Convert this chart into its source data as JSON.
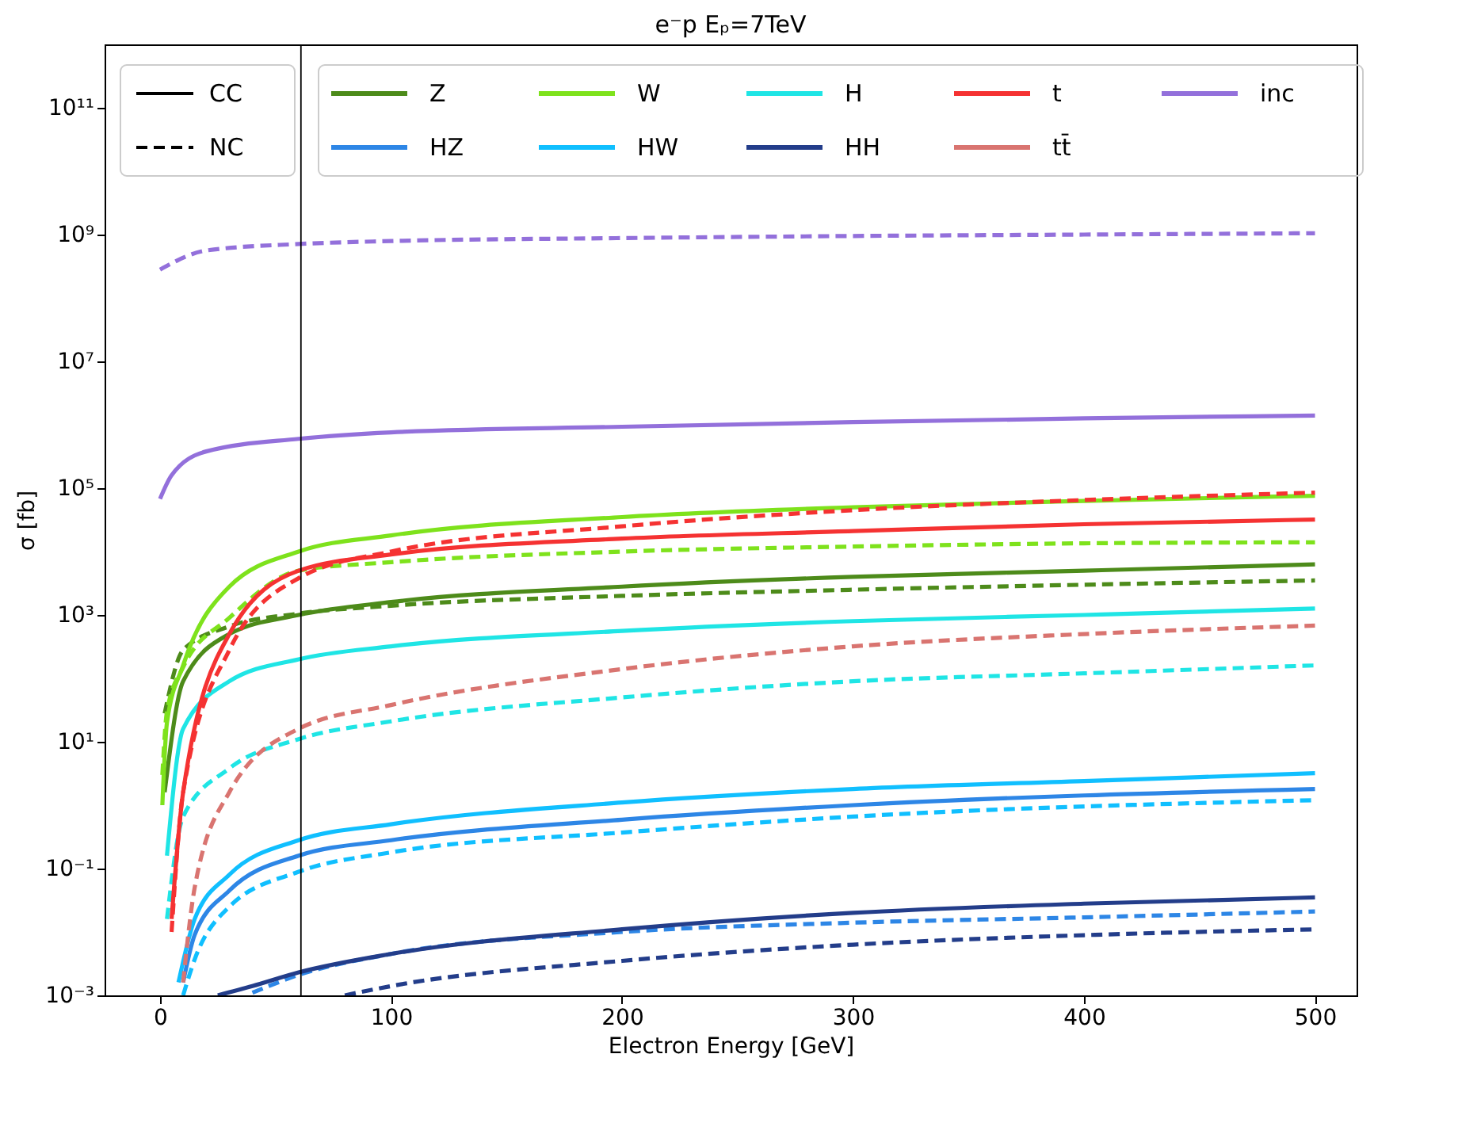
{
  "chart_data": {
    "type": "line",
    "title": "e⁻p Eₚ=7TeV",
    "xlabel": "Electron Energy [GeV]",
    "ylabel": "σ [fb]",
    "log": true,
    "grid": false,
    "legend": "top",
    "xlim": [
      -24,
      518
    ],
    "xticks": [
      0,
      100,
      200,
      300,
      400,
      500
    ],
    "ylim": [
      0.001,
      1000000000000.0
    ],
    "yticks": [
      {
        "value": 0.001,
        "label": "10⁻³"
      },
      {
        "value": 0.1,
        "label": "10⁻¹"
      },
      {
        "value": 10,
        "label": "10¹"
      },
      {
        "value": 1000,
        "label": "10³"
      },
      {
        "value": 100000,
        "label": "10⁵"
      },
      {
        "value": 10000000,
        "label": "10⁷"
      },
      {
        "value": 1000000000,
        "label": "10⁹"
      },
      {
        "value": 100000000000,
        "label": "10¹¹"
      }
    ],
    "annotations": [
      "CC",
      "NC"
    ],
    "ref_lines": [
      {
        "axis": "x",
        "value": 61,
        "color": "#000000"
      }
    ],
    "series": [
      {
        "name": "Z",
        "color": "#4d8b1a",
        "line_style": "solid",
        "x": [
          2,
          10,
          30,
          60,
          100,
          200,
          300,
          400,
          500
        ],
        "values": [
          1.6,
          90,
          500,
          1000,
          1600,
          2800,
          4000,
          5000,
          6300
        ]
      },
      {
        "color": "#4d8b1a",
        "line_style": "dashed",
        "x": [
          2,
          10,
          30,
          60,
          100,
          200,
          300,
          400,
          500
        ],
        "values": [
          28,
          280,
          660,
          1050,
          1400,
          2000,
          2500,
          3000,
          3500
        ]
      },
      {
        "name": "HZ",
        "color": "#2d86e6",
        "line_style": "solid",
        "x": [
          10,
          15,
          30,
          60,
          100,
          200,
          300,
          500
        ],
        "values": [
          0.0016,
          0.009,
          0.045,
          0.16,
          0.28,
          0.59,
          1,
          1.8
        ]
      },
      {
        "color": "#2d86e6",
        "line_style": "dashed",
        "x": [
          40,
          60,
          100,
          200,
          300,
          400,
          500
        ],
        "values": [
          0.0011,
          0.0021,
          0.0045,
          0.01,
          0.014,
          0.017,
          0.021
        ]
      },
      {
        "name": "W",
        "color": "#7ee21c",
        "line_style": "solid",
        "x": [
          1,
          3,
          10,
          30,
          60,
          100,
          200,
          300,
          400,
          500
        ],
        "values": [
          1,
          20,
          160,
          2800,
          10000,
          18000,
          35000,
          50000,
          63000,
          76000
        ]
      },
      {
        "color": "#7ee21c",
        "line_style": "dashed",
        "x": [
          1,
          3,
          10,
          30,
          60,
          100,
          200,
          300,
          400,
          500
        ],
        "values": [
          3,
          30,
          150,
          900,
          5000,
          6800,
          10000,
          12000,
          13500,
          14000
        ]
      },
      {
        "name": "HW",
        "color": "#10bfff",
        "line_style": "solid",
        "x": [
          8,
          15,
          30,
          60,
          100,
          200,
          300,
          400,
          500
        ],
        "values": [
          0.0016,
          0.016,
          0.08,
          0.28,
          0.5,
          1.1,
          1.8,
          2.4,
          3.2
        ]
      },
      {
        "color": "#10bfff",
        "line_style": "dashed",
        "x": [
          10,
          15,
          30,
          60,
          100,
          200,
          300,
          500
        ],
        "values": [
          0.001,
          0.0037,
          0.025,
          0.089,
          0.18,
          0.37,
          0.66,
          1.2
        ]
      },
      {
        "name": "H",
        "color": "#1fe5e5",
        "line_style": "solid",
        "x": [
          3,
          10,
          30,
          60,
          100,
          200,
          300,
          400,
          500
        ],
        "values": [
          0.16,
          16,
          90,
          200,
          320,
          560,
          800,
          1000,
          1260
        ]
      },
      {
        "color": "#1fe5e5",
        "line_style": "dashed",
        "x": [
          3,
          10,
          30,
          60,
          100,
          200,
          300,
          400,
          500
        ],
        "values": [
          0.016,
          0.66,
          3.8,
          11,
          21,
          50,
          90,
          120,
          160
        ]
      },
      {
        "name": "HH",
        "color": "#233d8a",
        "line_style": "solid",
        "x": [
          25,
          40,
          60,
          100,
          200,
          300,
          400,
          500
        ],
        "values": [
          0.001,
          0.0014,
          0.0023,
          0.0045,
          0.011,
          0.02,
          0.028,
          0.035
        ]
      },
      {
        "color": "#233d8a",
        "line_style": "dashed",
        "x": [
          80,
          100,
          200,
          300,
          400,
          500
        ],
        "values": [
          0.001,
          0.0014,
          0.0035,
          0.0063,
          0.0089,
          0.011
        ]
      },
      {
        "name": "t",
        "color": "#f53232",
        "line_style": "solid",
        "x": [
          5,
          10,
          30,
          60,
          100,
          200,
          300,
          400,
          500
        ],
        "values": [
          0.016,
          1.6,
          500,
          5000,
          9000,
          16000,
          21000,
          27000,
          32000
        ]
      },
      {
        "color": "#f53232",
        "line_style": "dashed",
        "x": [
          5,
          10,
          30,
          60,
          100,
          200,
          300,
          400,
          500
        ],
        "values": [
          0.01,
          1.6,
          280,
          3800,
          10000,
          25000,
          45000,
          65000,
          85000
        ]
      },
      {
        "name": "tt̄",
        "color": "#d97470",
        "line_style": "dashed",
        "x": [
          10,
          15,
          30,
          60,
          100,
          200,
          300,
          400,
          500
        ],
        "values": [
          0.0016,
          0.05,
          1.6,
          16,
          38,
          140,
          320,
          500,
          680
        ]
      },
      {
        "name": "inc",
        "color": "#9370db",
        "line_style": "solid",
        "x": [
          0,
          5,
          20,
          60,
          100,
          200,
          300,
          400,
          500
        ],
        "values": [
          68000,
          160000,
          380000,
          600000,
          760000,
          930000,
          1100000,
          1260000,
          1400000
        ]
      },
      {
        "color": "#9370db",
        "line_style": "dashed",
        "x": [
          0,
          20,
          60,
          100,
          200,
          300,
          400,
          500
        ],
        "values": [
          280000000,
          560000000,
          710000000,
          790000000,
          880000000,
          950000000,
          1000000000,
          1050000000
        ]
      }
    ]
  }
}
